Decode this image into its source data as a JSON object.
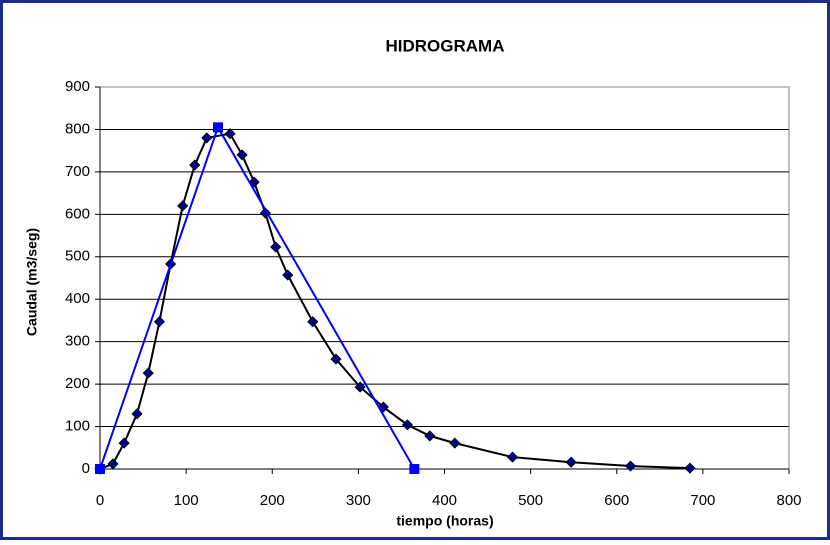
{
  "chart_data": {
    "type": "line",
    "title": "HIDROGRAMA",
    "x_label": "tiempo (horas)",
    "y_label": "Caudal (m3/seg)",
    "xlim": [
      0,
      800
    ],
    "xticks": [
      0,
      100,
      200,
      300,
      400,
      500,
      600,
      700,
      800
    ],
    "ylim": [
      0,
      900
    ],
    "yticks": [
      0,
      100,
      200,
      300,
      400,
      500,
      600,
      700,
      800,
      900
    ],
    "grid": true,
    "series": [
      {
        "color": "#000000",
        "marker": "diamond",
        "marker_color": "#000080",
        "x": [
          0,
          15,
          28,
          43,
          56,
          69,
          82,
          96,
          110,
          124,
          151,
          165,
          179,
          192,
          204,
          218,
          247,
          274,
          302,
          329,
          357,
          383,
          412,
          479,
          547,
          616,
          685
        ],
        "values": [
          0,
          12,
          61,
          130,
          226,
          347,
          483,
          620,
          716,
          780,
          790,
          740,
          676,
          603,
          523,
          457,
          347,
          259,
          193,
          146,
          104,
          78,
          61,
          28,
          16,
          7,
          2
        ]
      },
      {
        "color": "#0000ff",
        "marker": "square",
        "marker_color": "#0000ff",
        "x": [
          0,
          137,
          365
        ],
        "values": [
          0,
          805,
          0
        ]
      }
    ]
  }
}
